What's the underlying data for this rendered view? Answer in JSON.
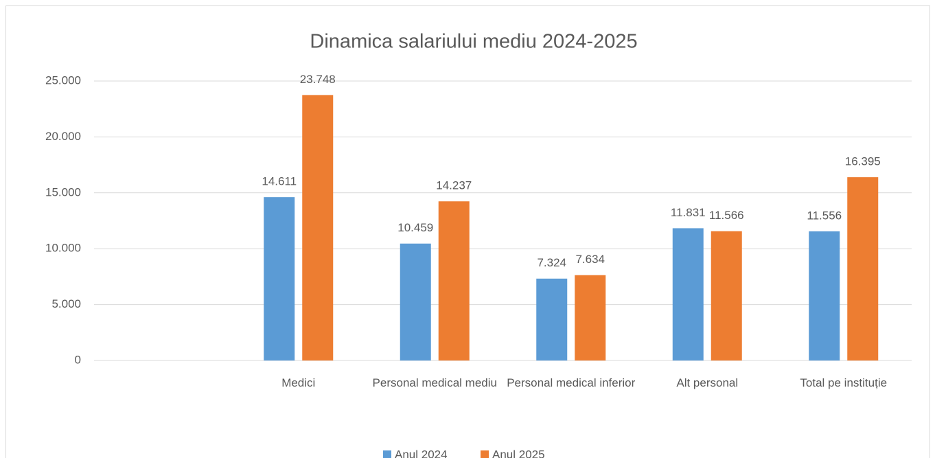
{
  "chart_data": {
    "type": "bar",
    "title": "Dinamica salariului mediu  2024-2025",
    "categories": [
      null,
      "Medici",
      "Personal medical mediu",
      "Personal medical inferior",
      "Alt personal",
      "Total pe instituție"
    ],
    "series": [
      {
        "name": "Anul 2024",
        "color": "#5b9bd5",
        "values": [
          null,
          14611,
          10459,
          7324,
          11831,
          11556
        ],
        "value_labels": [
          null,
          "14.611",
          "10.459",
          "7.324",
          "11.831",
          "11.556"
        ]
      },
      {
        "name": "Anul 2025",
        "color": "#ed7d31",
        "values": [
          null,
          23748,
          14237,
          7634,
          11566,
          16395
        ],
        "value_labels": [
          null,
          "23.748",
          "14.237",
          "7.634",
          "11.566",
          "16.395"
        ]
      }
    ],
    "ylim": [
      0,
      25000
    ],
    "yticks": [
      {
        "value": 0,
        "label": "0"
      },
      {
        "value": 5000,
        "label": "5.000"
      },
      {
        "value": 10000,
        "label": "10.000"
      },
      {
        "value": 15000,
        "label": "15.000"
      },
      {
        "value": 20000,
        "label": "20.000"
      },
      {
        "value": 25000,
        "label": "25.000"
      }
    ],
    "grid": true,
    "legend": "bottom"
  }
}
